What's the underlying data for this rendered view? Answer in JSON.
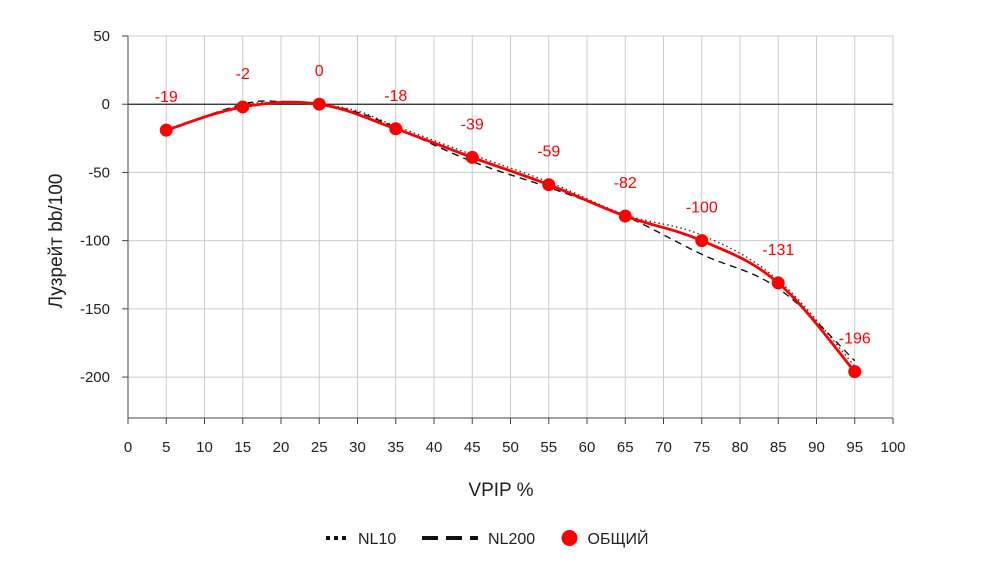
{
  "chart_data": {
    "type": "line",
    "xlabel": "VPIP %",
    "ylabel": "Лузрейт bb/100",
    "xlim": [
      0,
      100
    ],
    "ylim": [
      -230,
      50
    ],
    "xticks": [
      0,
      5,
      10,
      15,
      20,
      25,
      30,
      35,
      40,
      45,
      50,
      55,
      60,
      65,
      70,
      75,
      80,
      85,
      90,
      95,
      100
    ],
    "yticks": [
      50,
      0,
      -50,
      -100,
      -150,
      -200
    ],
    "grid": true,
    "legend_position": "bottom-center",
    "series": [
      {
        "name": "NL10",
        "style": "dotted",
        "color": "#333333",
        "x": [
          5,
          15,
          20,
          25,
          30,
          35,
          45,
          55,
          65,
          75,
          85,
          95
        ],
        "y": [
          -19,
          -1,
          1,
          0,
          -5,
          -16,
          -37,
          -57,
          -81,
          -96,
          -129,
          -192
        ]
      },
      {
        "name": "NL200",
        "style": "dashed",
        "color": "#111111",
        "x": [
          5,
          15,
          20,
          25,
          30,
          35,
          45,
          55,
          65,
          75,
          85,
          95
        ],
        "y": [
          -19,
          0,
          2,
          0,
          -6,
          -17,
          -42,
          -61,
          -82,
          -110,
          -135,
          -188
        ]
      },
      {
        "name": "ОБЩИЙ",
        "style": "solid-markers",
        "color": "#ff0000",
        "x": [
          5,
          15,
          25,
          35,
          45,
          55,
          65,
          75,
          85,
          95
        ],
        "y": [
          -19,
          -2,
          0,
          -18,
          -39,
          -59,
          -82,
          -100,
          -131,
          -196
        ],
        "labels": [
          "-19",
          "-2",
          "0",
          "-18",
          "-39",
          "-59",
          "-82",
          "-100",
          "-131",
          "-196"
        ]
      }
    ]
  }
}
